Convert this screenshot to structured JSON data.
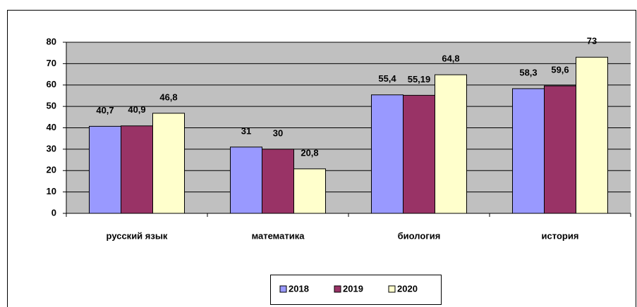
{
  "chart_data": {
    "type": "bar",
    "categories": [
      "русский язык",
      "математика",
      "биология",
      "история"
    ],
    "series": [
      {
        "name": "2018",
        "color": "#9999ff",
        "values": [
          40.7,
          31,
          55.4,
          58.3
        ],
        "value_labels": [
          "40,7",
          "31",
          "55,4",
          "58,3"
        ]
      },
      {
        "name": "2019",
        "color": "#993366",
        "values": [
          40.9,
          30,
          55.19,
          59.6
        ],
        "value_labels": [
          "40,9",
          "30",
          "55,19",
          "59,6"
        ]
      },
      {
        "name": "2020",
        "color": "#ffffcc",
        "values": [
          46.8,
          20.8,
          64.8,
          73
        ],
        "value_labels": [
          "46,8",
          "20,8",
          "64,8",
          "73"
        ]
      }
    ],
    "ylim": [
      0,
      80
    ],
    "yticks": [
      0,
      10,
      20,
      30,
      40,
      50,
      60,
      70,
      80
    ],
    "grid": true,
    "legend": "bottom"
  }
}
